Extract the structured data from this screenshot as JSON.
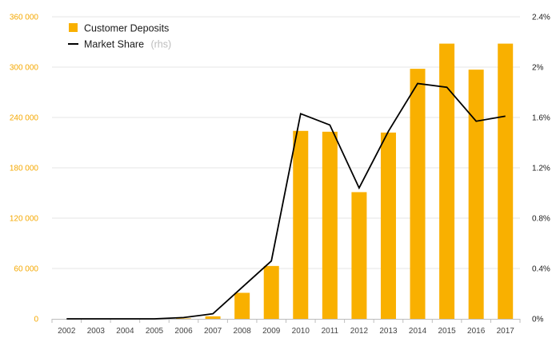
{
  "chart_data": {
    "type": "bar+line",
    "categories": [
      "2002",
      "2003",
      "2004",
      "2005",
      "2006",
      "2007",
      "2008",
      "2009",
      "2010",
      "2011",
      "2012",
      "2013",
      "2014",
      "2015",
      "2016",
      "2017"
    ],
    "series": [
      {
        "name": "Customer Deposits",
        "type": "bar",
        "axis": "left",
        "color": "#f9b000",
        "values": [
          0,
          0,
          0,
          0,
          500,
          3000,
          31000,
          63000,
          224000,
          223000,
          151000,
          222000,
          298000,
          328000,
          297000,
          328000
        ]
      },
      {
        "name": "Market Share",
        "name_suffix": "(rhs)",
        "type": "line",
        "axis": "right",
        "color": "#000000",
        "values": [
          0.0,
          0.0,
          0.0,
          0.0,
          0.01,
          0.04,
          0.25,
          0.46,
          1.63,
          1.54,
          1.04,
          1.49,
          1.87,
          1.84,
          1.57,
          1.61
        ]
      }
    ],
    "y_left": {
      "ylim": [
        0,
        360000
      ],
      "ticks": [
        0,
        60000,
        120000,
        180000,
        240000,
        300000,
        360000
      ],
      "tick_labels": [
        "0",
        "60 000",
        "120 000",
        "180 000",
        "240 000",
        "300 000",
        "360 000"
      ]
    },
    "y_right": {
      "ylim": [
        0,
        2.4
      ],
      "ticks": [
        0,
        0.4,
        0.8,
        1.2,
        1.6,
        2.0,
        2.4
      ],
      "tick_labels": [
        "0%",
        "0.4%",
        "0.8%",
        "1.2%",
        "1.6%",
        "2%",
        "2.4%"
      ]
    },
    "legend": {
      "position": "top-left",
      "items": [
        {
          "label": "Customer Deposits",
          "symbol": "bar"
        },
        {
          "label": "Market Share",
          "suffix": "(rhs)",
          "symbol": "line"
        }
      ]
    },
    "grid": true,
    "colors": {
      "bar": "#f9b000",
      "line": "#000000",
      "left_tick": "#f5a800",
      "grid": "#e6e6e6"
    }
  }
}
